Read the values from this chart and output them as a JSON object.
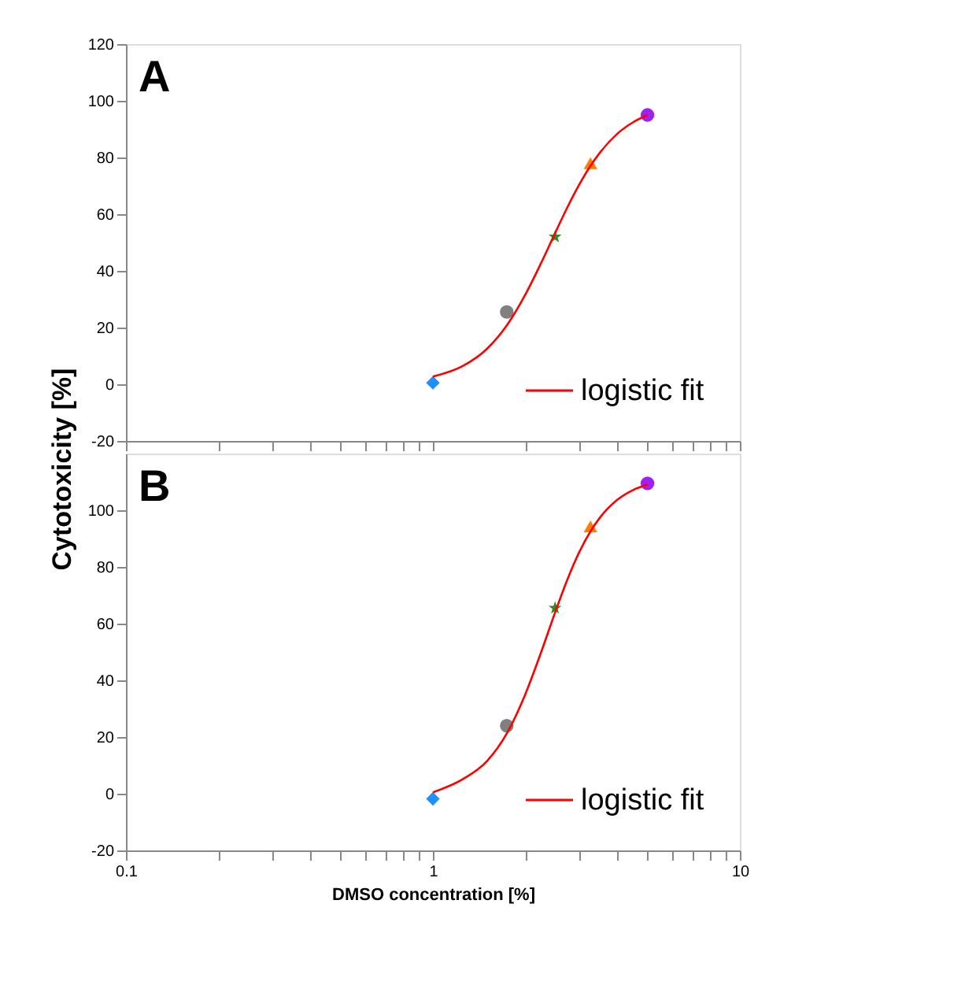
{
  "chart_data": [
    {
      "type": "scatter",
      "annotations": [
        "A"
      ],
      "ylabel": "Cytotoxicity   [%]",
      "xlim": [
        0.1,
        10
      ],
      "xticks": [
        0.1,
        {
          "value": 0.2,
          "label": null
        },
        {
          "value": 0.3,
          "label": null
        },
        {
          "value": 0.4,
          "label": null
        },
        {
          "value": 0.5,
          "label": null
        },
        {
          "value": 0.6,
          "label": null
        },
        {
          "value": 0.7,
          "label": null
        },
        {
          "value": 0.8,
          "label": null
        },
        {
          "value": 0.9,
          "label": null
        },
        1,
        {
          "value": 2,
          "label": null
        },
        {
          "value": 3,
          "label": null
        },
        {
          "value": 4,
          "label": null
        },
        {
          "value": 5,
          "label": null
        },
        {
          "value": 6,
          "label": null
        },
        {
          "value": 7,
          "label": null
        },
        {
          "value": 8,
          "label": null
        },
        {
          "value": 9,
          "label": null
        },
        10
      ],
      "ylim": [
        -20,
        120
      ],
      "yticks": [
        -20,
        0,
        20,
        40,
        60,
        80,
        100,
        120
      ],
      "tick_labels": "y",
      "log": "x",
      "legend": "bottom right",
      "series": [
        {
          "x": [
            1
          ],
          "values": [
            0.5
          ],
          "color": "#1e90ff",
          "marker": "diamond"
        },
        {
          "x": [
            1.74
          ],
          "values": [
            25.5
          ],
          "color": "#808080",
          "marker": "circle"
        },
        {
          "x": [
            2.5
          ],
          "values": [
            52
          ],
          "color": "#2e8b22",
          "marker": "star"
        },
        {
          "x": [
            3.26
          ],
          "values": [
            78
          ],
          "color": "#ff8000",
          "marker": "triangle"
        },
        {
          "x": [
            5
          ],
          "values": [
            95
          ],
          "color": "#a020f0",
          "marker": "circle"
        },
        {
          "type": "line",
          "name": "logistic fit",
          "color": "#ff0000",
          "marker": "none",
          "x": [
            1,
            1.25,
            1.5,
            1.75,
            2,
            2.25,
            2.5,
            2.75,
            3,
            3.25,
            3.5,
            4,
            4.5,
            5
          ],
          "values": [
            2.7,
            6.4,
            12.5,
            21.1,
            31.6,
            42.7,
            53.3,
            62.7,
            70.5,
            76.8,
            81.7,
            88.5,
            92.5,
            95
          ]
        }
      ]
    },
    {
      "type": "scatter",
      "annotations": [
        "B"
      ],
      "xlabel": "DMSO concentration   [%]",
      "xlim": [
        0.1,
        10
      ],
      "xticks": [
        0.1,
        {
          "value": 0.2,
          "label": null
        },
        {
          "value": 0.3,
          "label": null
        },
        {
          "value": 0.4,
          "label": null
        },
        {
          "value": 0.5,
          "label": null
        },
        {
          "value": 0.6,
          "label": null
        },
        {
          "value": 0.7,
          "label": null
        },
        {
          "value": 0.8,
          "label": null
        },
        {
          "value": 0.9,
          "label": null
        },
        1,
        {
          "value": 2,
          "label": null
        },
        {
          "value": 3,
          "label": null
        },
        {
          "value": 4,
          "label": null
        },
        {
          "value": 5,
          "label": null
        },
        {
          "value": 6,
          "label": null
        },
        {
          "value": 7,
          "label": null
        },
        {
          "value": 8,
          "label": null
        },
        {
          "value": 9,
          "label": null
        },
        10
      ],
      "ylim": [
        -20,
        120
      ],
      "yticks": [
        -20,
        0,
        20,
        40,
        60,
        80,
        100
      ],
      "log": "x",
      "legend": "bottom right",
      "series": [
        {
          "x": [
            1
          ],
          "values": [
            -1.8
          ],
          "color": "#1e90ff",
          "marker": "diamond"
        },
        {
          "x": [
            1.74
          ],
          "values": [
            24
          ],
          "color": "#808080",
          "marker": "circle"
        },
        {
          "x": [
            2.5
          ],
          "values": [
            65.5
          ],
          "color": "#2e8b22",
          "marker": "star"
        },
        {
          "x": [
            3.26
          ],
          "values": [
            94.3
          ],
          "color": "#ff8000",
          "marker": "triangle"
        },
        {
          "x": [
            5
          ],
          "values": [
            109.5
          ],
          "color": "#a020f0",
          "marker": "circle"
        },
        {
          "type": "line",
          "name": "logistic fit",
          "color": "#ff0000",
          "marker": "none",
          "x": [
            1,
            1.25,
            1.5,
            1.75,
            2,
            2.25,
            2.5,
            2.75,
            3,
            3.25,
            3.5,
            4,
            4.5,
            5
          ],
          "values": [
            0.5,
            5.1,
            11.5,
            21.7,
            35.1,
            49.8,
            63.9,
            75.9,
            85.3,
            92.3,
            97.4,
            103.8,
            107.2,
            109.1
          ]
        }
      ]
    }
  ]
}
